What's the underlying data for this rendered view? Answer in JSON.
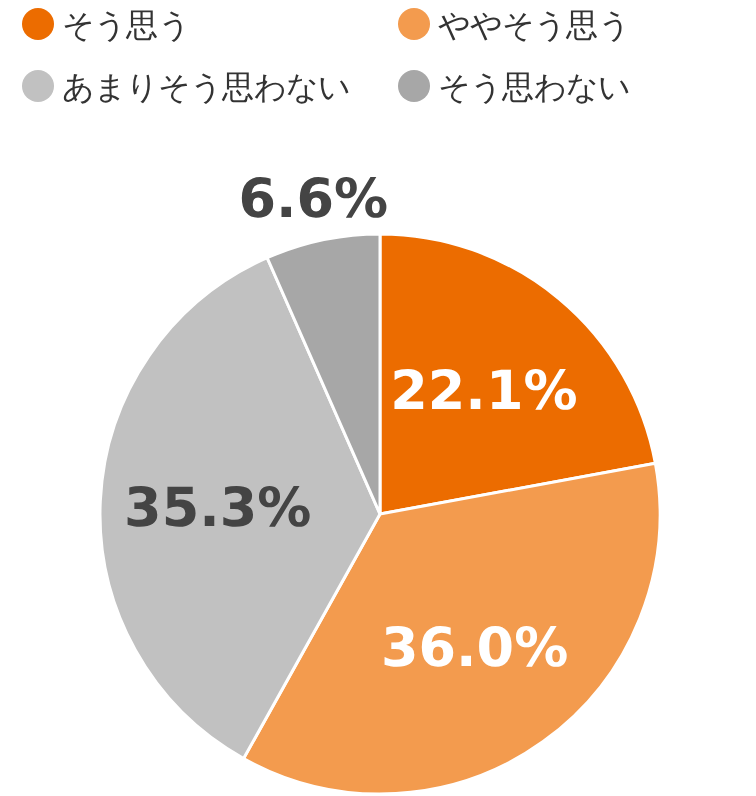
{
  "chart_data": {
    "type": "pie",
    "categories": [
      "そう思う",
      "ややそう思う",
      "あまりそう思わない",
      "そう思わない"
    ],
    "values": [
      22.1,
      36.0,
      35.3,
      6.6
    ],
    "colors": [
      "#ec6c00",
      "#f39b4e",
      "#c1c1c1",
      "#a7a7a7"
    ],
    "value_labels": [
      "22.1%",
      "36.0%",
      "35.3%",
      "6.6%"
    ],
    "legend": "top"
  }
}
